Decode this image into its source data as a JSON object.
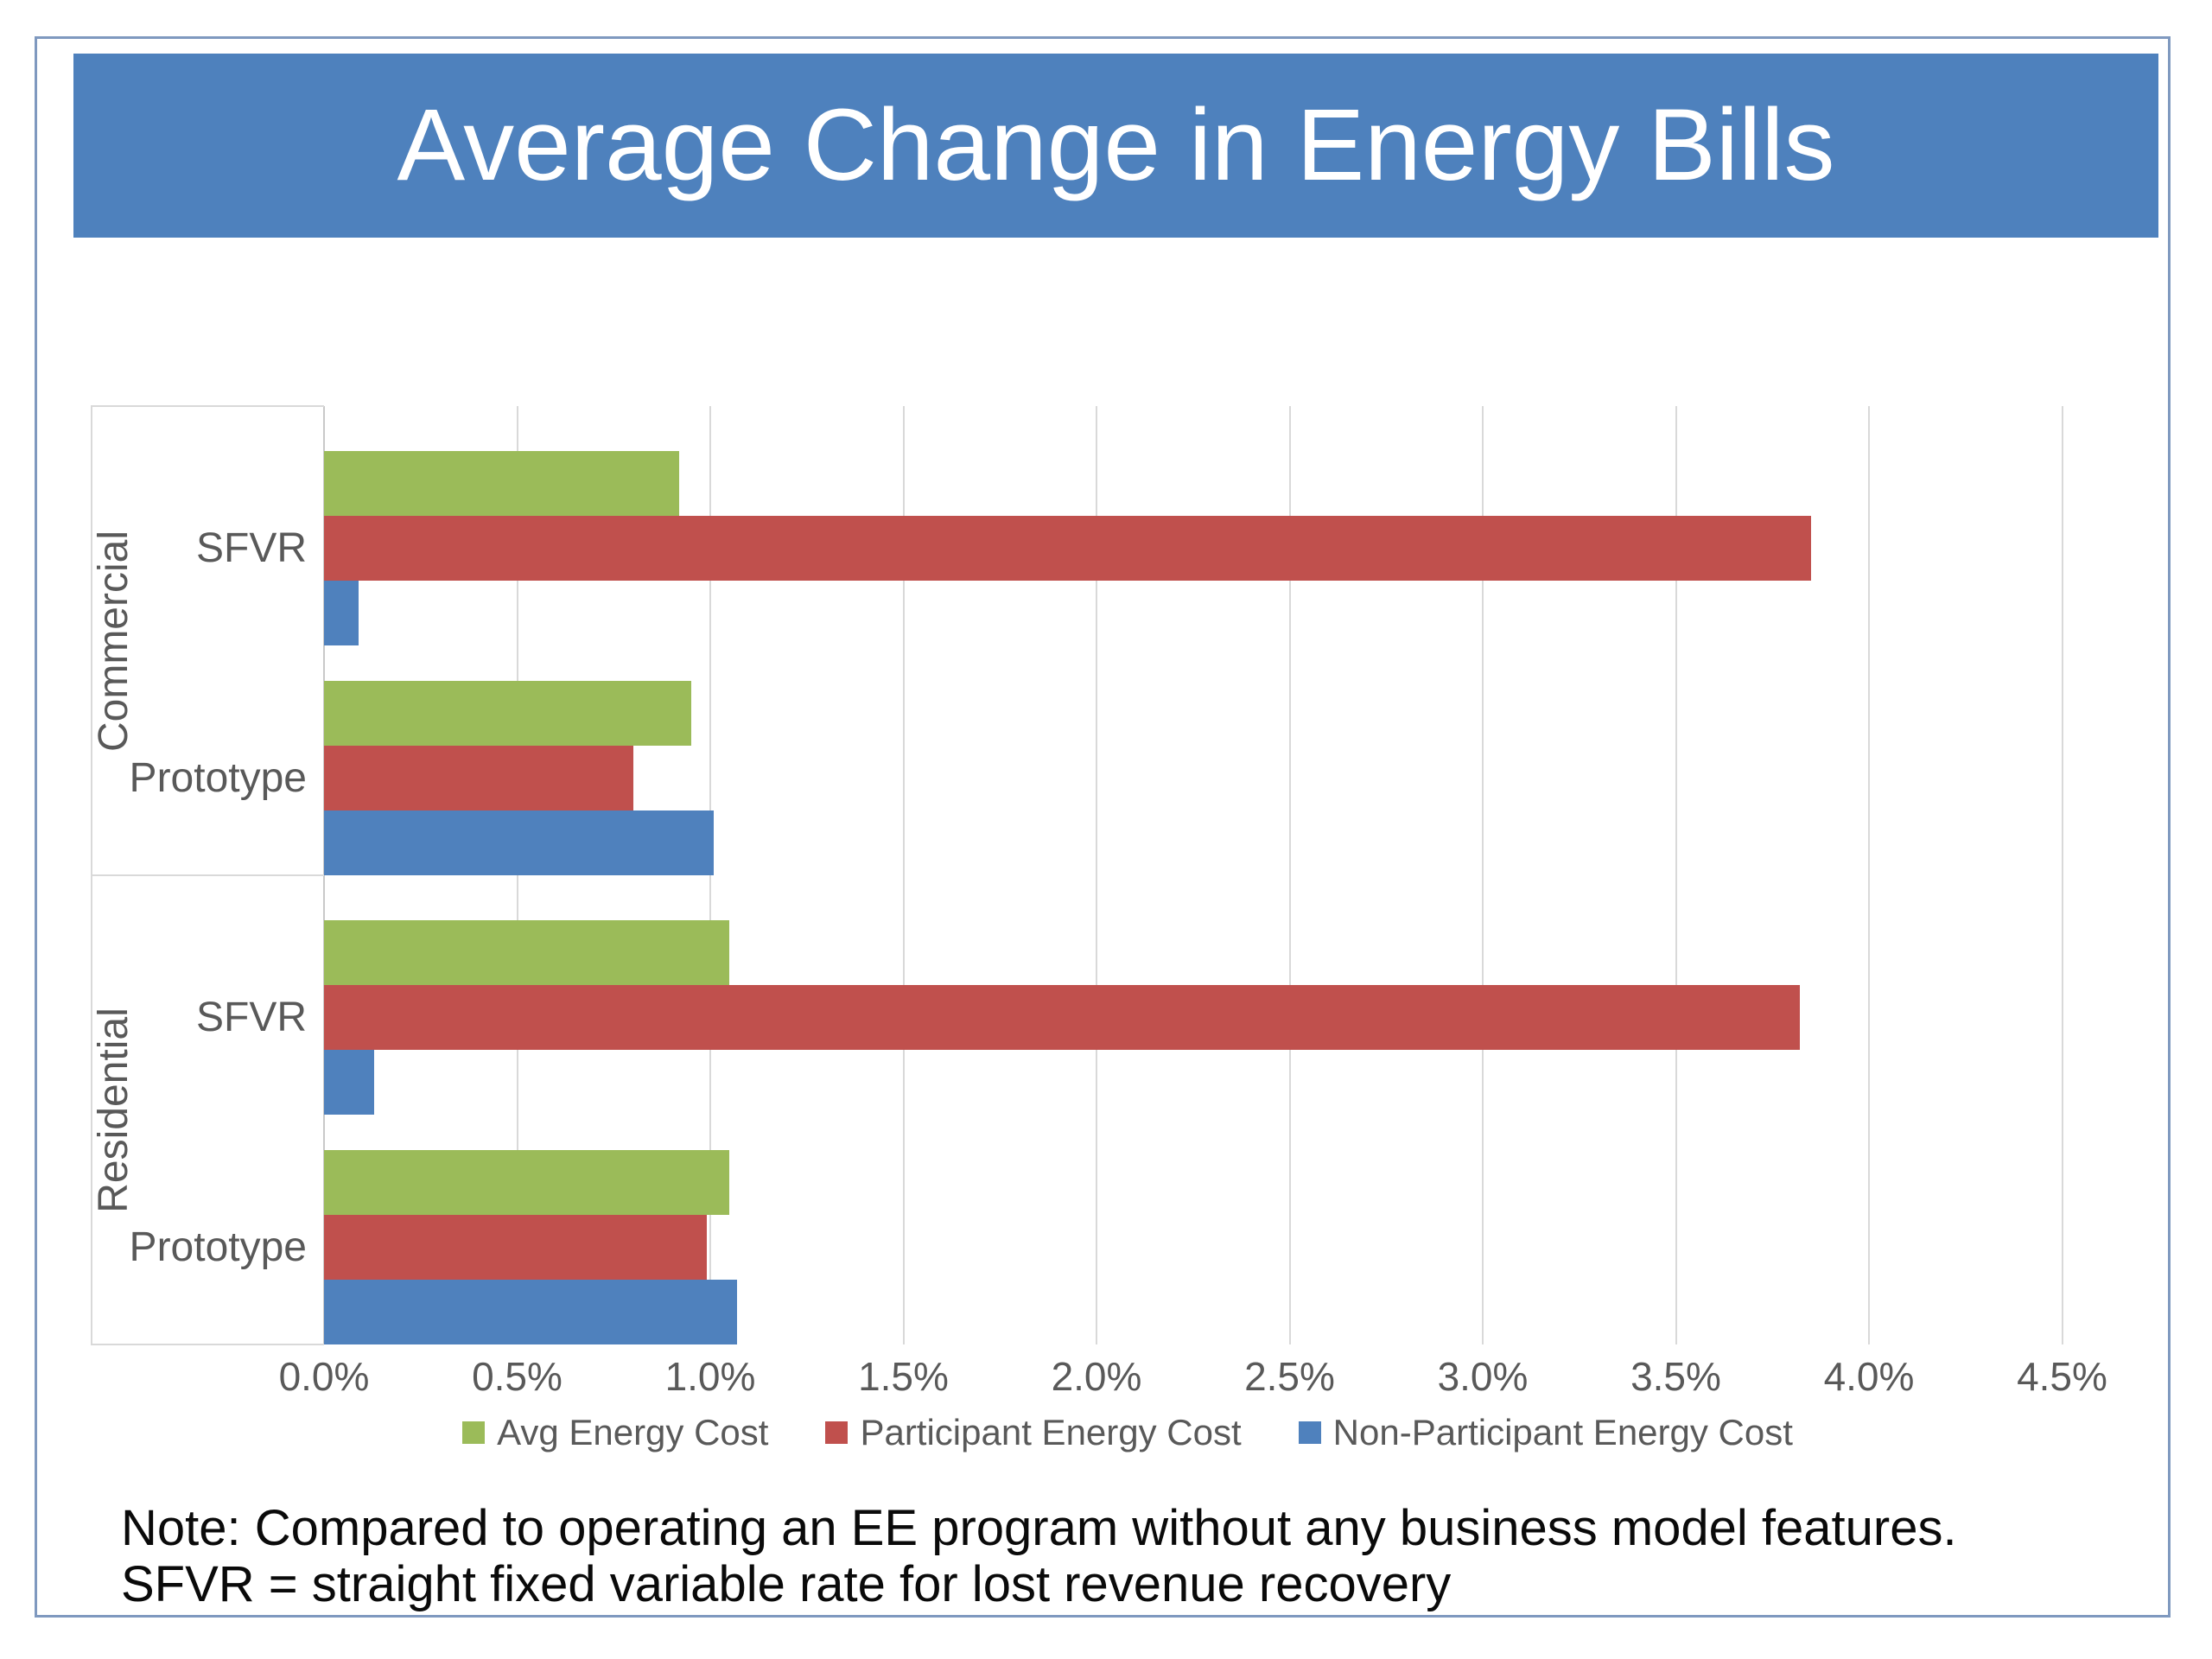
{
  "header": {
    "title": "Average Change in Energy Bills"
  },
  "note": {
    "line1": "Note: Compared to operating an EE program without any business model features.",
    "line2": "SFVR = straight fixed variable rate for lost revenue recovery"
  },
  "colors": {
    "banner_blue": "#4e81bd",
    "frame_border": "#7f99bf",
    "gridline": "#d9d9d9",
    "axis_text": "#595959"
  },
  "chart_data": {
    "type": "bar",
    "orientation": "horizontal",
    "title": "Average Change in Energy Bills",
    "unit": "%",
    "grid": true,
    "legend_position": "bottom",
    "x_axis": {
      "min": 0,
      "max": 4.5,
      "step": 0.5,
      "tick_labels": [
        "0.0%",
        "0.5%",
        "1.0%",
        "1.5%",
        "2.0%",
        "2.5%",
        "3.0%",
        "3.5%",
        "4.0%",
        "4.5%"
      ]
    },
    "series": [
      {
        "name": "Avg Energy Cost",
        "color": "#9bbb59"
      },
      {
        "name": "Participant Energy Cost",
        "color": "#c0504d"
      },
      {
        "name": "Non-Participant Energy Cost",
        "color": "#4f81bd"
      }
    ],
    "groups": [
      {
        "label": "Commercial",
        "rows": [
          {
            "label": "SFVR",
            "values": [
              0.92,
              3.85,
              0.09
            ]
          },
          {
            "label": "Prototype",
            "values": [
              0.95,
              0.8,
              1.01
            ]
          }
        ]
      },
      {
        "label": "Residential",
        "rows": [
          {
            "label": "SFVR",
            "values": [
              1.05,
              3.82,
              0.13
            ]
          },
          {
            "label": "Prototype",
            "values": [
              1.05,
              0.99,
              1.07
            ]
          }
        ]
      }
    ]
  }
}
